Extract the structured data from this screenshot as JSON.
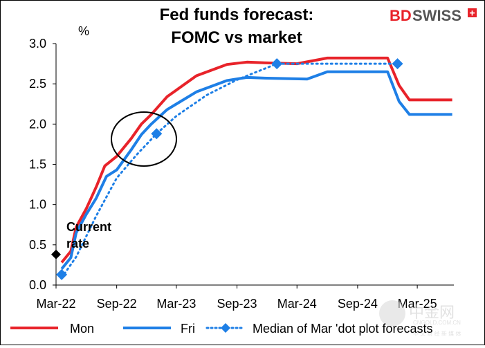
{
  "brand": {
    "text_bd": "BD",
    "text_swiss": "SWISS",
    "cross": "+"
  },
  "watermark": {
    "cn": "中金网",
    "url": "CNGOLD.COM.CN",
    "tagline": "中 文 财 经 新 媒 体"
  },
  "colors": {
    "mon": "#e8232a",
    "fri": "#1e7fe6",
    "median": "#1e7fe6",
    "current": "#000000",
    "brand_red": "#e8232a"
  },
  "chart_data": {
    "type": "line",
    "title": [
      "Fed funds forecast:",
      "FOMC vs market"
    ],
    "ylabel": "%",
    "ylim": [
      0,
      3.0
    ],
    "yticks": [
      "0.0",
      "0.5",
      "1.0",
      "1.5",
      "2.0",
      "2.5",
      "3.0"
    ],
    "xticks": [
      "Mar-22",
      "Sep-22",
      "Mar-23",
      "Sep-23",
      "Mar-24",
      "Sep-24",
      "Mar-25"
    ],
    "xlim": [
      "Mar-22",
      "Jun-25"
    ],
    "series": [
      {
        "name": "Mon",
        "style": "solid",
        "points": [
          [
            "2022-03-18",
            0.28
          ],
          [
            "2022-04-15",
            0.42
          ],
          [
            "2022-05-01",
            0.72
          ],
          [
            "2022-06-01",
            0.95
          ],
          [
            "2022-07-01",
            1.22
          ],
          [
            "2022-07-27",
            1.48
          ],
          [
            "2022-09-01",
            1.6
          ],
          [
            "2022-10-15",
            1.82
          ],
          [
            "2022-11-15",
            2.0
          ],
          [
            "2022-12-15",
            2.12
          ],
          [
            "2023-02-01",
            2.34
          ],
          [
            "2023-05-01",
            2.6
          ],
          [
            "2023-08-01",
            2.74
          ],
          [
            "2023-10-01",
            2.77
          ],
          [
            "2023-12-01",
            2.76
          ],
          [
            "2024-03-01",
            2.75
          ],
          [
            "2024-06-01",
            2.82
          ],
          [
            "2024-12-01",
            2.82
          ],
          [
            "2025-01-05",
            2.48
          ],
          [
            "2025-02-05",
            2.3
          ],
          [
            "2025-06-15",
            2.3
          ]
        ]
      },
      {
        "name": "Fri",
        "style": "solid",
        "points": [
          [
            "2022-03-18",
            0.2
          ],
          [
            "2022-04-15",
            0.34
          ],
          [
            "2022-05-01",
            0.65
          ],
          [
            "2022-06-01",
            0.88
          ],
          [
            "2022-07-01",
            1.08
          ],
          [
            "2022-08-01",
            1.35
          ],
          [
            "2022-09-01",
            1.43
          ],
          [
            "2022-10-15",
            1.68
          ],
          [
            "2022-11-15",
            1.87
          ],
          [
            "2022-12-15",
            2.0
          ],
          [
            "2023-02-01",
            2.18
          ],
          [
            "2023-05-01",
            2.4
          ],
          [
            "2023-08-01",
            2.54
          ],
          [
            "2023-10-01",
            2.58
          ],
          [
            "2023-12-01",
            2.57
          ],
          [
            "2024-04-01",
            2.56
          ],
          [
            "2024-06-01",
            2.65
          ],
          [
            "2024-12-01",
            2.65
          ],
          [
            "2025-01-05",
            2.28
          ],
          [
            "2025-02-05",
            2.12
          ],
          [
            "2025-06-15",
            2.12
          ]
        ]
      },
      {
        "name": "Median of Mar 'dot plot forecasts",
        "style": "dotted",
        "points": [
          [
            "2022-03-18",
            0.09
          ],
          [
            "2022-05-01",
            0.35
          ],
          [
            "2022-07-01",
            0.86
          ],
          [
            "2022-09-01",
            1.33
          ],
          [
            "2022-11-01",
            1.62
          ],
          [
            "2022-12-31",
            1.88
          ],
          [
            "2023-03-01",
            2.1
          ],
          [
            "2023-06-01",
            2.36
          ],
          [
            "2023-09-01",
            2.55
          ],
          [
            "2023-12-31",
            2.75
          ],
          [
            "2024-06-01",
            2.75
          ],
          [
            "2024-12-31",
            2.75
          ]
        ],
        "markers": [
          [
            "2022-03-18",
            0.13
          ],
          [
            "2022-12-31",
            1.88
          ],
          [
            "2023-12-31",
            2.75
          ],
          [
            "2024-12-31",
            2.75
          ]
        ]
      }
    ],
    "current_rate": {
      "label": [
        "Current",
        "rate"
      ],
      "date": "2022-03-01",
      "value": 0.38
    },
    "legend": [
      "Mon",
      "Fri",
      "Median of Mar 'dot plot forecasts"
    ],
    "legend_position": "bottom",
    "grid": false
  }
}
